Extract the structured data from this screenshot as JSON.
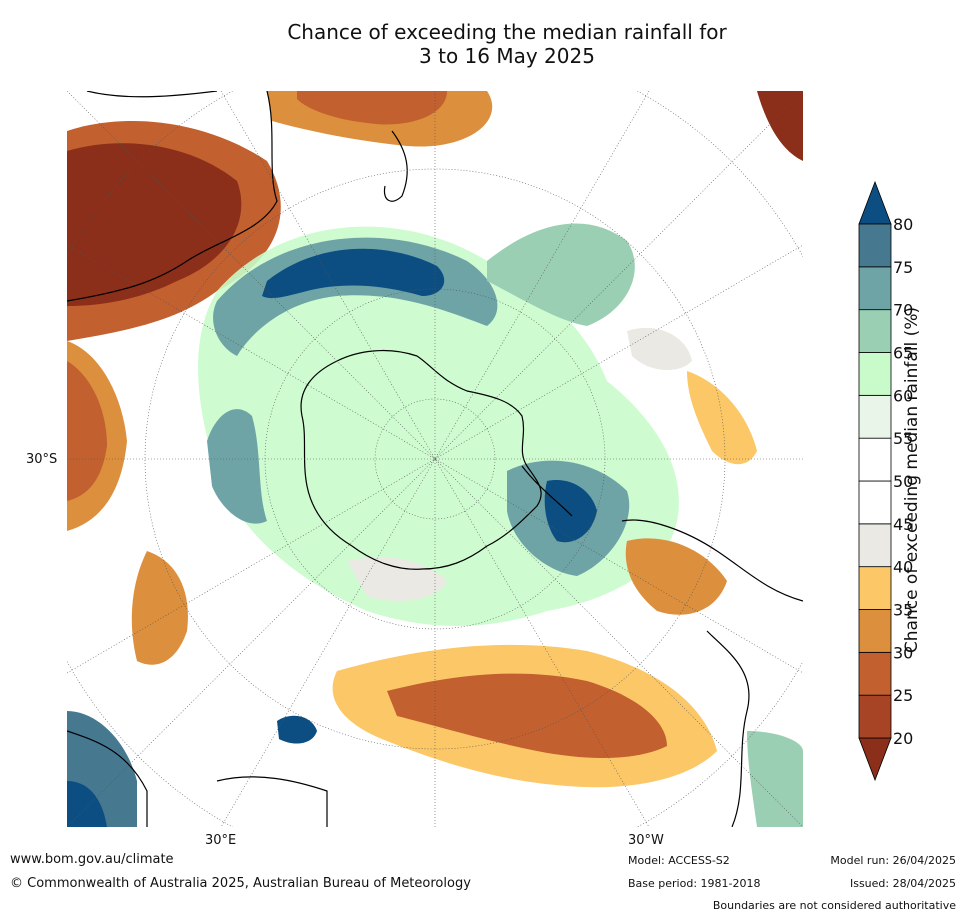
{
  "title_line1": "Chance of exceeding the median rainfall for",
  "title_line2": "3 to 16 May 2025",
  "axes": {
    "lat_label": "30°S",
    "lon_label_east": "30°E",
    "lon_label_west": "30°W"
  },
  "colorbar": {
    "title": "Chance of exceeding median rainfall (%)",
    "ticks": [
      "20",
      "25",
      "30",
      "35",
      "40",
      "45",
      "50",
      "55",
      "60",
      "65",
      "70",
      "75",
      "80"
    ],
    "colors": [
      "#8b2e1a",
      "#a84426",
      "#c2602f",
      "#dc8f3d",
      "#fbc767",
      "#ebe9e3",
      "#ffffff",
      "#ffffff",
      "#eaf5ea",
      "#c9fbca",
      "#9bcfb4",
      "#6ea4a6",
      "#46798f",
      "#0c4e82"
    ]
  },
  "footer": {
    "url": "www.bom.gov.au/climate",
    "copyright": "© Commonwealth of Australia 2025, Australian Bureau of Meteorology",
    "model": "Model: ACCESS-S2",
    "base_period": "Base period: 1981-2018",
    "model_run": "Model run: 26/04/2025",
    "issued": "Issued: 28/04/2025",
    "disclaimer": "Boundaries are not considered authoritative"
  }
}
